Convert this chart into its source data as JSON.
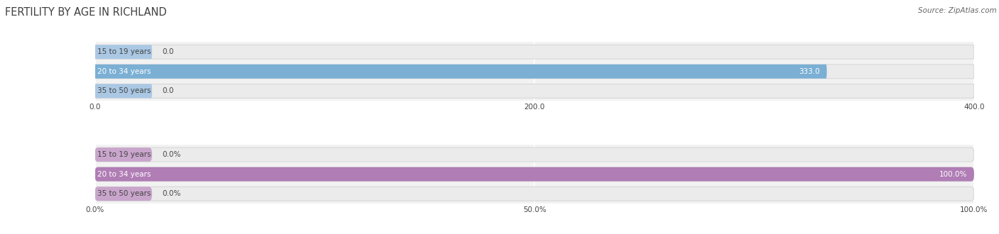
{
  "title": "FERTILITY BY AGE IN RICHLAND",
  "source": "Source: ZipAtlas.com",
  "top_chart": {
    "categories": [
      "15 to 19 years",
      "20 to 34 years",
      "35 to 50 years"
    ],
    "values": [
      0.0,
      333.0,
      0.0
    ],
    "bar_color_full": "#7bafd4",
    "bar_color_light": "#aac8e4",
    "xlim": [
      0,
      400
    ],
    "xticks": [
      0.0,
      200.0,
      400.0
    ],
    "xtick_labels": [
      "0.0",
      "200.0",
      "400.0"
    ]
  },
  "bottom_chart": {
    "categories": [
      "15 to 19 years",
      "20 to 34 years",
      "35 to 50 years"
    ],
    "values": [
      0.0,
      100.0,
      0.0
    ],
    "bar_color_full": "#b07db5",
    "bar_color_light": "#c9a5cc",
    "xlim": [
      0,
      100
    ],
    "xticks": [
      0.0,
      50.0,
      100.0
    ],
    "xtick_labels": [
      "0.0%",
      "50.0%",
      "100.0%"
    ]
  },
  "bar_height": 0.72,
  "fig_bg_color": "#ffffff",
  "bar_bg_color": "#ebebeb",
  "bar_bg_edge_color": "#d8d8d8",
  "label_fontsize": 7.5,
  "tick_fontsize": 7.5,
  "title_fontsize": 10.5,
  "source_fontsize": 7.5,
  "value_label_color_white": "#ffffff",
  "value_label_color_dark": "#555555",
  "label_text_color": "#444444",
  "title_color": "#404040",
  "source_color": "#666666",
  "grid_color": "#ffffff",
  "axes_bg_color": "#f2f2f2"
}
